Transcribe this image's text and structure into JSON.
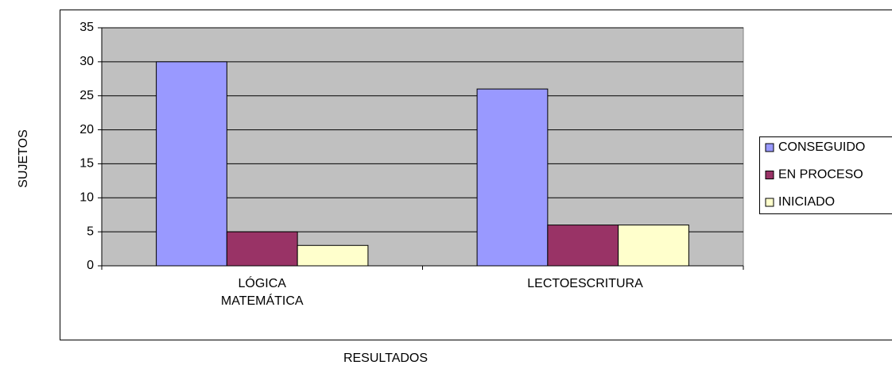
{
  "chart_data": {
    "type": "bar",
    "categories": [
      "LÓGICA MATEMÁTICA",
      "LECTOESCRITURA"
    ],
    "series": [
      {
        "name": "CONSEGUIDO",
        "color": "#9999ff",
        "values": [
          30,
          26
        ]
      },
      {
        "name": "EN PROCESO",
        "color": "#993366",
        "values": [
          5,
          6
        ]
      },
      {
        "name": "INICIADO",
        "color": "#ffffcc",
        "values": [
          3,
          6
        ]
      }
    ],
    "ylim": [
      0,
      35
    ],
    "yticks": [
      0,
      5,
      10,
      15,
      20,
      25,
      30,
      35
    ],
    "grid": true,
    "ylabel": "SUJETOS",
    "xlabel": "RESULTADOS",
    "legend": "right"
  }
}
